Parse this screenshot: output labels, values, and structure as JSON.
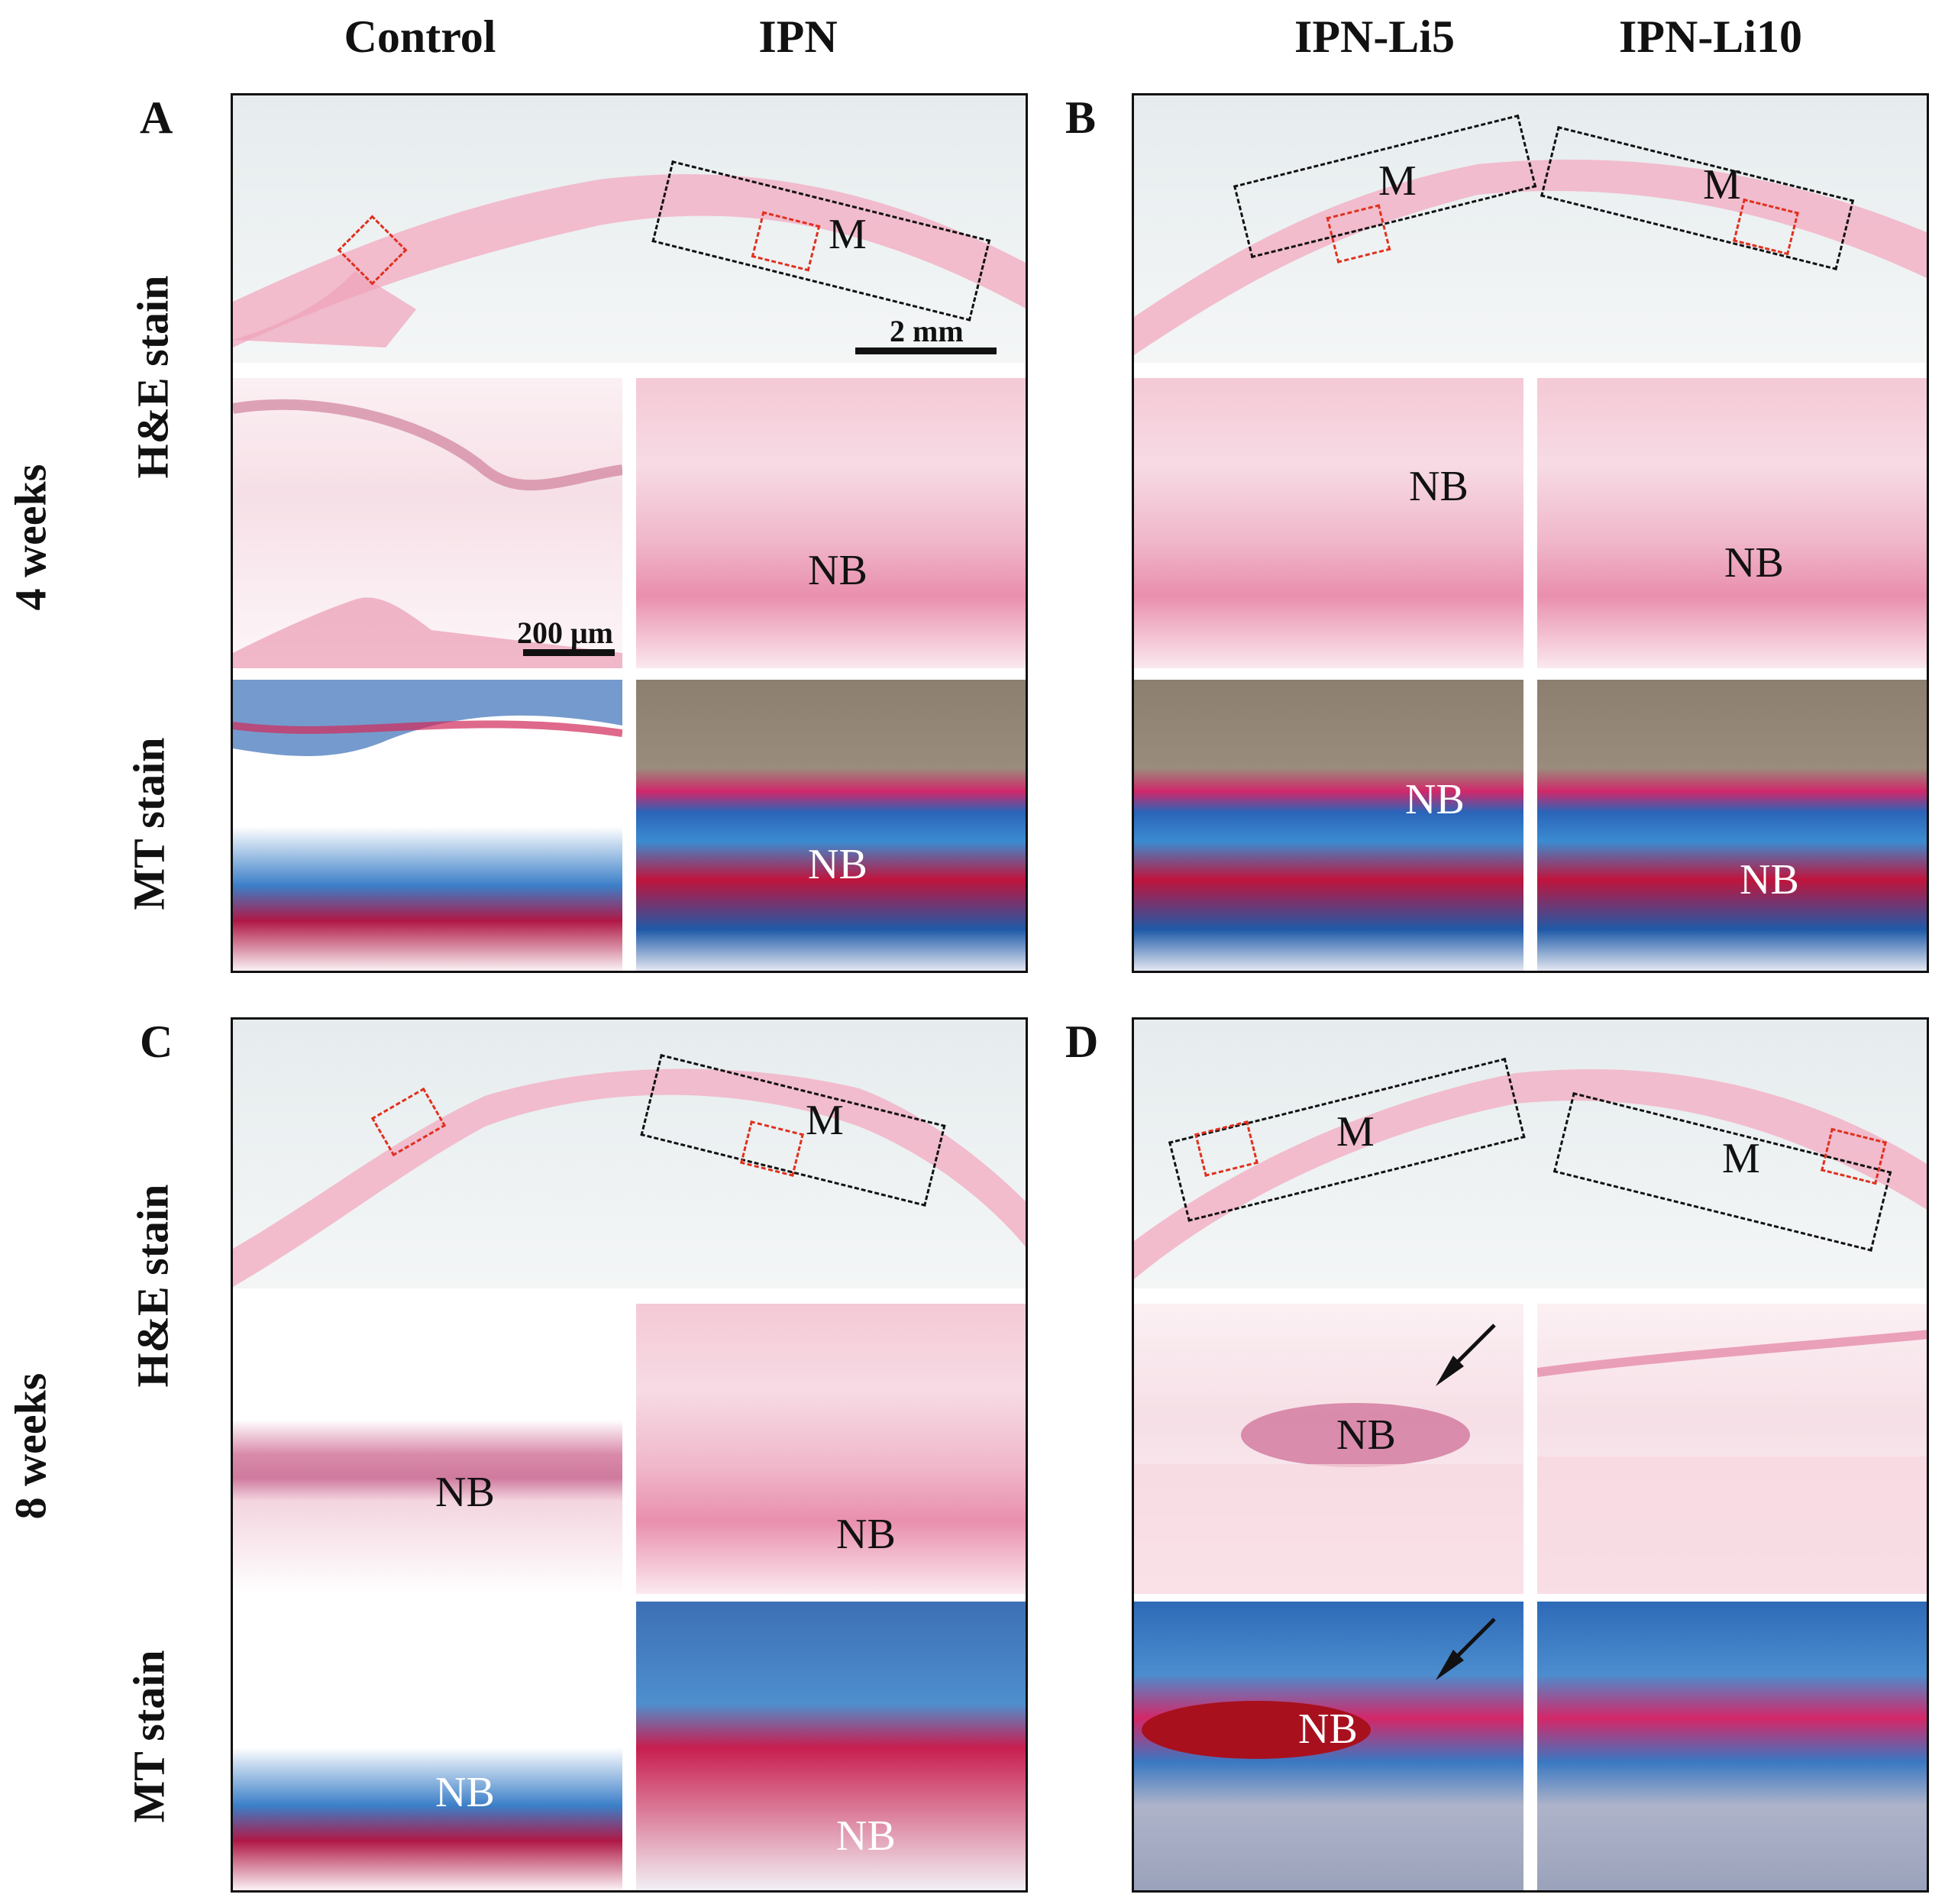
{
  "columns": {
    "control": "Control",
    "ipn": "IPN",
    "li5": "IPN-Li5",
    "li10": "IPN-Li10"
  },
  "rows": {
    "week4": "4 weeks",
    "week8": "8 weeks",
    "he": "H&E stain",
    "mt": "MT stain"
  },
  "panels": {
    "a": "A",
    "b": "B",
    "c": "C",
    "d": "D"
  },
  "labels": {
    "m": "M",
    "nb": "NB",
    "scale_overview": "2 mm",
    "scale_detail": "200 μm"
  }
}
